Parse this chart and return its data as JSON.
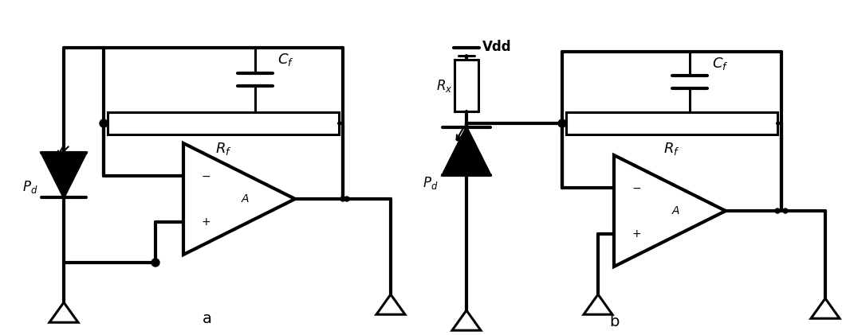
{
  "bg_color": "#ffffff",
  "line_color": "#000000",
  "lw": 2.2,
  "lw_thick": 3.0,
  "label_a": "a",
  "label_b": "b",
  "label_Cf": "$C_f$",
  "label_Rf": "$R_f$",
  "label_A": "A",
  "label_Pd_a": "$P_d$",
  "label_Pd_b": "$P_d$",
  "label_Vdd": "Vdd",
  "label_Rx": "$R_x$"
}
